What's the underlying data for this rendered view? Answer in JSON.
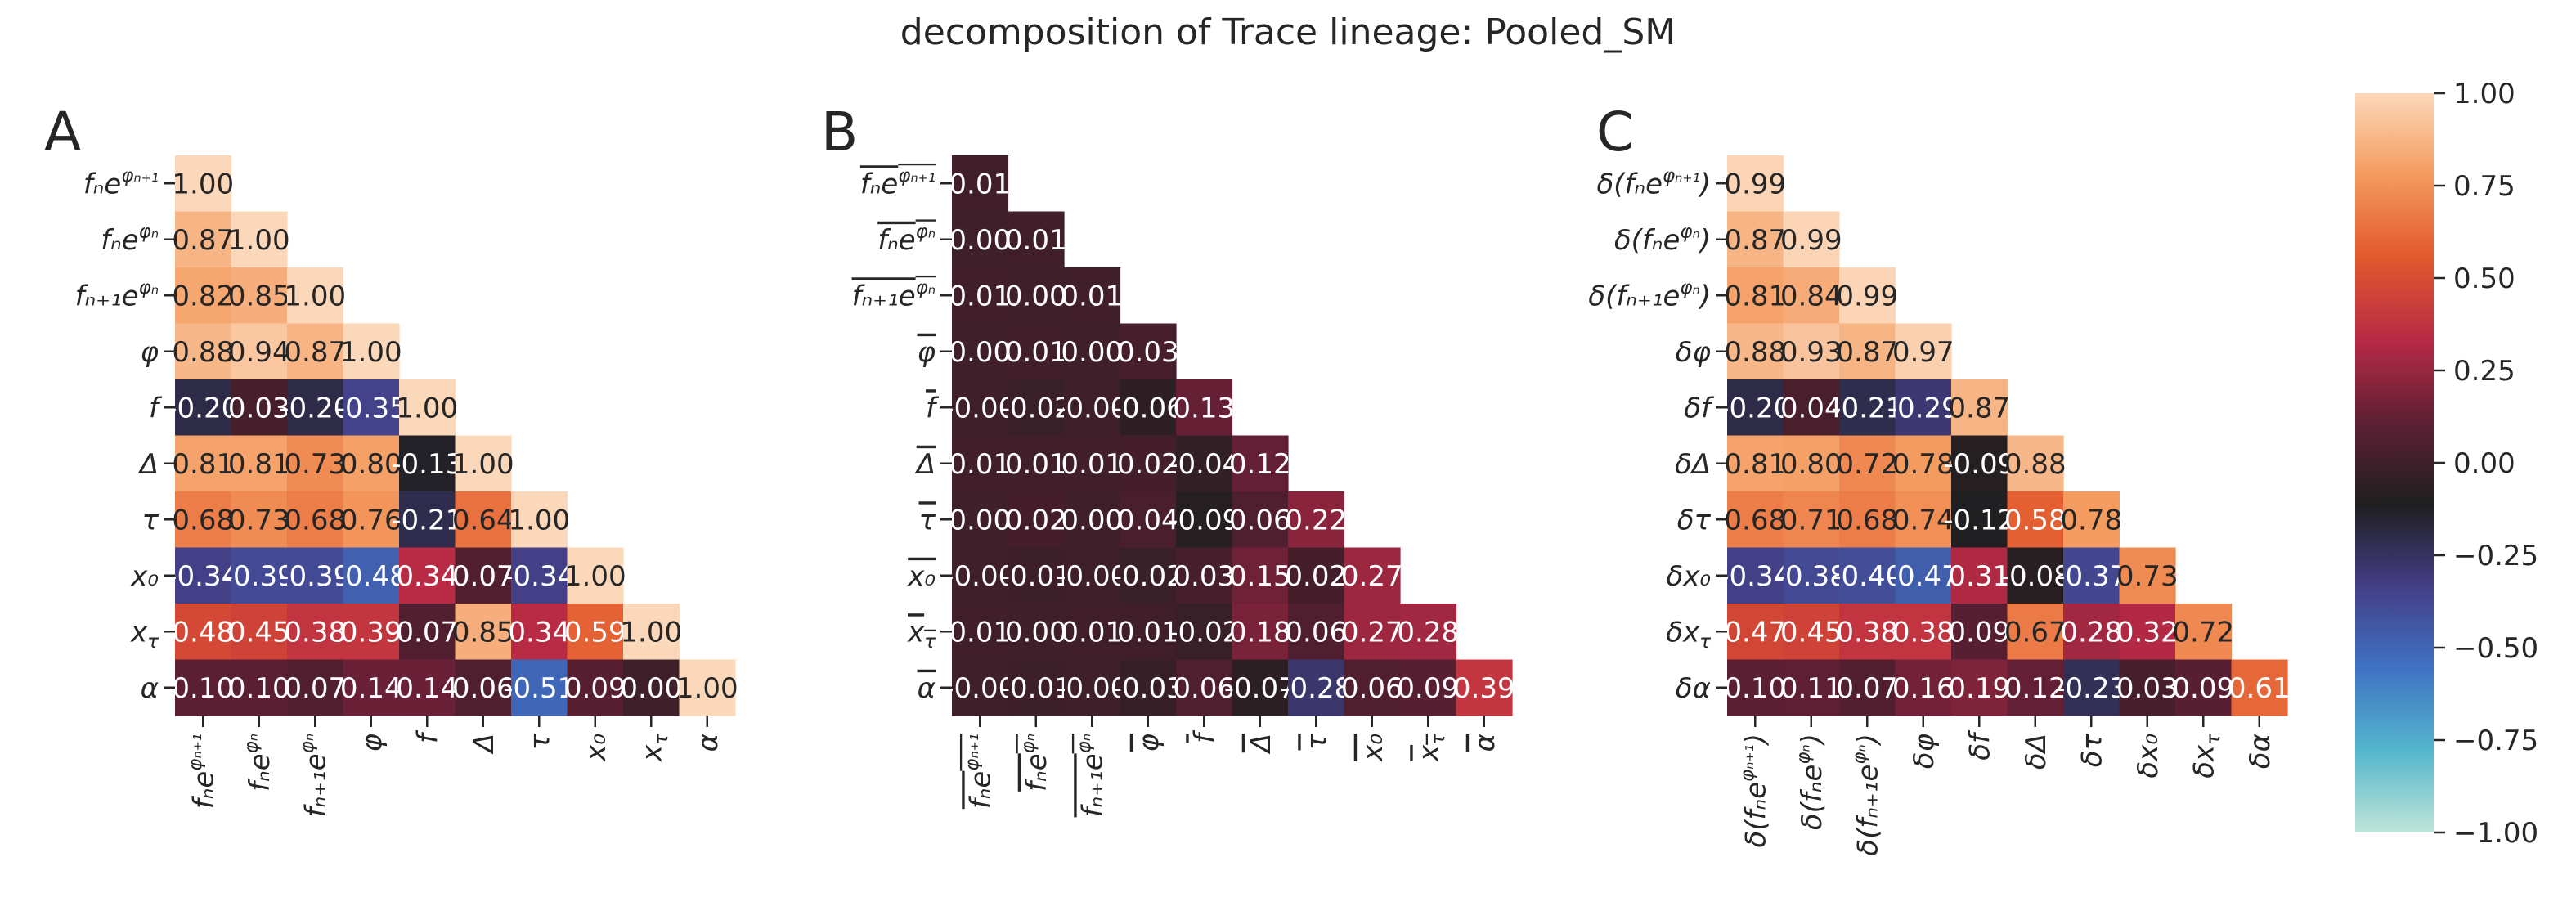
{
  "title": "decomposition of Trace lineage: Pooled_SM",
  "colorbar": {
    "ticks": [
      "1.00",
      "0.75",
      "0.50",
      "0.25",
      "0.00",
      "−0.25",
      "−0.50",
      "−0.75",
      "−1.00"
    ],
    "stops": [
      "#bfe5d8",
      "#54b6cc",
      "#3f72c4",
      "#443e86",
      "#1f1f1f",
      "#5e1f34",
      "#b82a45",
      "#e2582d",
      "#f49a5e",
      "#fcd8ba"
    ],
    "vmin": -1.0,
    "vmax": 1.0
  },
  "chart_data": [
    {
      "type": "heatmap",
      "panel_letter": "A",
      "row_labels": [
        "fₙe^{φₙ₊₁}",
        "fₙe^{φₙ}",
        "fₙ₊₁e^{φₙ}",
        "φ",
        "f",
        "Δ",
        "τ",
        "x₀",
        "x_τ",
        "α"
      ],
      "col_labels": [
        "fₙe^{φₙ₊₁}",
        "fₙe^{φₙ}",
        "fₙ₊₁e^{φₙ}",
        "φ",
        "f",
        "Δ",
        "τ",
        "x₀",
        "x_τ",
        "α"
      ],
      "values": [
        [
          1.0
        ],
        [
          0.87,
          1.0
        ],
        [
          0.82,
          0.85,
          1.0
        ],
        [
          0.88,
          0.94,
          0.87,
          1.0
        ],
        [
          -0.2,
          0.03,
          -0.2,
          -0.35,
          1.0
        ],
        [
          0.81,
          0.81,
          0.73,
          0.8,
          -0.13,
          1.0
        ],
        [
          0.68,
          0.73,
          0.68,
          0.76,
          -0.21,
          0.64,
          1.0
        ],
        [
          -0.34,
          -0.39,
          -0.39,
          -0.48,
          0.34,
          0.07,
          -0.34,
          1.0
        ],
        [
          0.48,
          0.45,
          0.38,
          0.39,
          0.07,
          0.85,
          0.34,
          0.59,
          1.0
        ],
        [
          0.1,
          0.1,
          0.07,
          0.14,
          0.14,
          0.06,
          -0.51,
          0.09,
          0.0,
          1.0
        ]
      ],
      "labels": [
        [
          "1.00"
        ],
        [
          "0.87",
          "1.00"
        ],
        [
          "0.82",
          "0.85",
          "1.00"
        ],
        [
          "0.88",
          "0.94",
          "0.87",
          "1.00"
        ],
        [
          "-0.20",
          "0.03",
          "-0.20",
          "-0.35",
          "1.00"
        ],
        [
          "0.81",
          "0.81",
          "0.73",
          "0.80",
          "-0.13",
          "1.00"
        ],
        [
          "0.68",
          "0.73",
          "0.68",
          "0.76",
          "-0.21",
          "0.64",
          "1.00"
        ],
        [
          "-0.34",
          "-0.39",
          "-0.39",
          "-0.48",
          "0.34",
          "0.07",
          "-0.34",
          "1.00"
        ],
        [
          "0.48",
          "0.45",
          "0.38",
          "0.39",
          "0.07",
          "0.85",
          "0.34",
          "0.59",
          "1.00"
        ],
        [
          "0.10",
          "0.10",
          "0.07",
          "0.14",
          "0.14",
          "0.06",
          "-0.51",
          "0.09",
          "0.00",
          "1.00"
        ]
      ],
      "vmin": -1.0,
      "vmax": 1.0,
      "triangle": "lower"
    },
    {
      "type": "heatmap",
      "panel_letter": "B",
      "row_labels": [
        "bar(fₙe^{φₙ₊₁})",
        "bar(fₙe^{φₙ})",
        "bar(fₙ₊₁e^{φₙ})",
        "bar(φ)",
        "bar(f)",
        "bar(Δ)",
        "bar(τ)",
        "bar(x₀)",
        "bar(x_τ)",
        "bar(α)"
      ],
      "col_labels": [
        "bar(fₙe^{φₙ₊₁})",
        "bar(fₙe^{φₙ})",
        "bar(fₙ₊₁e^{φₙ})",
        "bar(φ)",
        "bar(f)",
        "bar(Δ)",
        "bar(τ)",
        "bar(x₀)",
        "bar(x_τ)",
        "bar(α)"
      ],
      "values": [
        [
          0.01
        ],
        [
          0.0,
          0.01
        ],
        [
          0.01,
          0.0,
          0.01
        ],
        [
          0.0,
          0.01,
          0.0,
          0.03
        ],
        [
          -0.0,
          -0.02,
          -0.0,
          -0.06,
          0.13
        ],
        [
          0.01,
          0.01,
          0.01,
          0.02,
          -0.04,
          0.12
        ],
        [
          0.0,
          0.02,
          0.0,
          0.04,
          -0.09,
          0.06,
          0.22
        ],
        [
          -0.0,
          -0.01,
          -0.0,
          -0.02,
          0.03,
          0.15,
          0.02,
          0.27
        ],
        [
          0.01,
          0.0,
          0.01,
          0.01,
          -0.02,
          0.18,
          0.06,
          0.27,
          0.28
        ],
        [
          -0.0,
          -0.01,
          -0.0,
          -0.03,
          0.06,
          -0.07,
          -0.28,
          0.06,
          0.09,
          0.39
        ]
      ],
      "labels": [
        [
          "0.01"
        ],
        [
          "0.00",
          "0.01"
        ],
        [
          "0.01",
          "0.00",
          "0.01"
        ],
        [
          "0.00",
          "0.01",
          "0.00",
          "0.03"
        ],
        [
          "-0.00",
          "-0.02",
          "-0.00",
          "-0.06",
          "0.13"
        ],
        [
          "0.01",
          "0.01",
          "0.01",
          "0.02",
          "-0.04",
          "0.12"
        ],
        [
          "0.00",
          "0.02",
          "0.00",
          "0.04",
          "-0.09",
          "0.06",
          "0.22"
        ],
        [
          "-0.00",
          "-0.01",
          "-0.00",
          "-0.02",
          "0.03",
          "0.15",
          "0.02",
          "0.27"
        ],
        [
          "0.01",
          "0.00",
          "0.01",
          "0.01",
          "-0.02",
          "0.18",
          "0.06",
          "0.27",
          "0.28"
        ],
        [
          "-0.00",
          "-0.01",
          "-0.00",
          "-0.03",
          "0.06",
          "-0.07",
          "-0.28",
          "0.06",
          "0.09",
          "0.39"
        ]
      ],
      "vmin": -1.0,
      "vmax": 1.0,
      "triangle": "lower"
    },
    {
      "type": "heatmap",
      "panel_letter": "C",
      "row_labels": [
        "δ(fₙe^{φₙ₊₁})",
        "δ(fₙe^{φₙ})",
        "δ(fₙ₊₁e^{φₙ})",
        "δφ",
        "δf",
        "δΔ",
        "δτ",
        "δx₀",
        "δx_τ",
        "δα"
      ],
      "col_labels": [
        "δ(fₙe^{φₙ₊₁})",
        "δ(fₙe^{φₙ})",
        "δ(fₙ₊₁e^{φₙ})",
        "δφ",
        "δf",
        "δΔ",
        "δτ",
        "δx₀",
        "δx_τ",
        "δα"
      ],
      "values": [
        [
          0.99
        ],
        [
          0.87,
          0.99
        ],
        [
          0.81,
          0.84,
          0.99
        ],
        [
          0.88,
          0.93,
          0.87,
          0.97
        ],
        [
          -0.2,
          0.04,
          -0.21,
          -0.29,
          0.87
        ],
        [
          0.81,
          0.8,
          0.72,
          0.78,
          -0.09,
          0.88
        ],
        [
          0.68,
          0.71,
          0.68,
          0.74,
          -0.12,
          0.58,
          0.78
        ],
        [
          -0.34,
          -0.38,
          -0.4,
          -0.47,
          0.31,
          -0.08,
          -0.37,
          0.73
        ],
        [
          0.47,
          0.45,
          0.38,
          0.38,
          0.09,
          0.67,
          0.28,
          0.32,
          0.72
        ],
        [
          0.1,
          0.11,
          0.07,
          0.16,
          0.19,
          0.12,
          -0.23,
          0.03,
          0.09,
          0.61
        ]
      ],
      "labels": [
        [
          "0.99"
        ],
        [
          "0.87",
          "0.99"
        ],
        [
          "0.81",
          "0.84",
          "0.99"
        ],
        [
          "0.88",
          "0.93",
          "0.87",
          "0.97"
        ],
        [
          "-0.20",
          "0.04",
          "-0.21",
          "-0.29",
          "0.87"
        ],
        [
          "0.81",
          "0.80",
          "0.72",
          "0.78",
          "-0.09",
          "0.88"
        ],
        [
          "0.68",
          "0.71",
          "0.68",
          "0.74",
          "-0.12",
          "0.58",
          "0.78"
        ],
        [
          "-0.34",
          "-0.38",
          "-0.40",
          "-0.47",
          "0.31",
          "-0.08",
          "-0.37",
          "0.73"
        ],
        [
          "0.47",
          "0.45",
          "0.38",
          "0.38",
          "0.09",
          "0.67",
          "0.28",
          "0.32",
          "0.72"
        ],
        [
          "0.10",
          "0.11",
          "0.07",
          "0.16",
          "0.19",
          "0.12",
          "-0.23",
          "0.03",
          "0.09",
          "0.61"
        ]
      ],
      "vmin": -1.0,
      "vmax": 1.0,
      "triangle": "lower"
    }
  ]
}
